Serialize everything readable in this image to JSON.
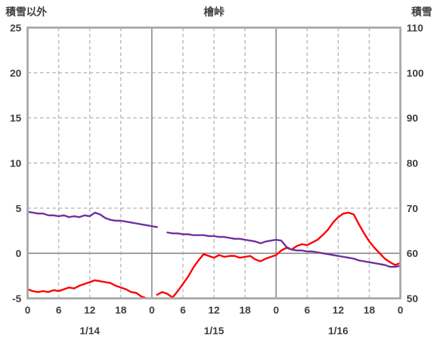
{
  "chart_data": {
    "type": "line",
    "title": "檜峠",
    "left_axis": {
      "label": "積雪以外",
      "min": -5,
      "max": 25,
      "ticks": [
        25,
        20,
        15,
        10,
        5,
        0,
        -5
      ]
    },
    "right_axis": {
      "label": "積雪",
      "min": 50,
      "max": 110,
      "ticks": [
        110,
        100,
        90,
        80,
        70,
        60,
        50
      ]
    },
    "x_axis": {
      "min": 0,
      "max": 72,
      "hour_ticks": [
        0,
        6,
        12,
        18,
        24,
        30,
        36,
        42,
        48,
        54,
        60,
        66,
        72
      ],
      "hour_labels": [
        "0",
        "6",
        "12",
        "18",
        "0",
        "6",
        "12",
        "18",
        "0",
        "6",
        "12",
        "18",
        "0"
      ],
      "day_labels": [
        {
          "label": "1/14",
          "hour": 12
        },
        {
          "label": "1/15",
          "hour": 36
        },
        {
          "label": "1/16",
          "hour": 60
        }
      ]
    },
    "series": [
      {
        "name": "red-line",
        "axis": "left",
        "color": "#ff0000",
        "values": [
          -4.0,
          -4.2,
          -4.3,
          -4.2,
          -4.3,
          -4.1,
          -4.2,
          -4.0,
          -3.8,
          -3.9,
          -3.6,
          -3.4,
          -3.2,
          -3.0,
          -3.1,
          -3.2,
          -3.3,
          -3.6,
          -3.8,
          -4.0,
          -4.3,
          -4.4,
          -4.8,
          -5.0,
          null,
          -4.6,
          -4.3,
          -4.5,
          -4.9,
          -4.2,
          -3.4,
          -2.6,
          -1.6,
          -0.8,
          -0.1,
          -0.3,
          -0.5,
          -0.2,
          -0.4,
          -0.3,
          -0.3,
          -0.5,
          -0.4,
          -0.3,
          -0.7,
          -0.9,
          -0.6,
          -0.4,
          -0.2,
          0.3,
          0.6,
          0.4,
          0.8,
          1.0,
          0.9,
          1.2,
          1.5,
          2.0,
          2.6,
          3.4,
          4.0,
          4.4,
          4.5,
          4.3,
          3.2,
          2.2,
          1.3,
          0.6,
          0.0,
          -0.6,
          -1.0,
          -1.3,
          -1.1
        ]
      },
      {
        "name": "purple-line",
        "axis": "right",
        "color": "#7030a0",
        "values": [
          69.2,
          69.0,
          68.8,
          68.8,
          68.4,
          68.4,
          68.2,
          68.4,
          68.0,
          68.2,
          68.0,
          68.4,
          68.2,
          69.0,
          68.6,
          67.8,
          67.4,
          67.2,
          67.2,
          67.0,
          66.8,
          66.6,
          66.4,
          66.2,
          66.0,
          65.8,
          null,
          64.6,
          64.4,
          64.4,
          64.2,
          64.2,
          64.0,
          64.0,
          64.0,
          63.8,
          63.8,
          63.6,
          63.6,
          63.4,
          63.2,
          63.2,
          63.0,
          62.8,
          62.6,
          62.2,
          62.6,
          62.8,
          63.0,
          62.8,
          61.4,
          60.8,
          60.6,
          60.6,
          60.4,
          60.4,
          60.2,
          60.0,
          59.8,
          59.6,
          59.4,
          59.2,
          59.0,
          58.8,
          58.4,
          58.2,
          58.0,
          57.8,
          57.6,
          57.4,
          57.0,
          57.0,
          57.2
        ]
      }
    ],
    "colors": {
      "text": "#404040",
      "frame": "#a6a6a6",
      "grid_dashed": "#a6a6a6",
      "grid_solid": "#808080",
      "background": "#ffffff"
    },
    "grid": true,
    "legend": "none"
  }
}
